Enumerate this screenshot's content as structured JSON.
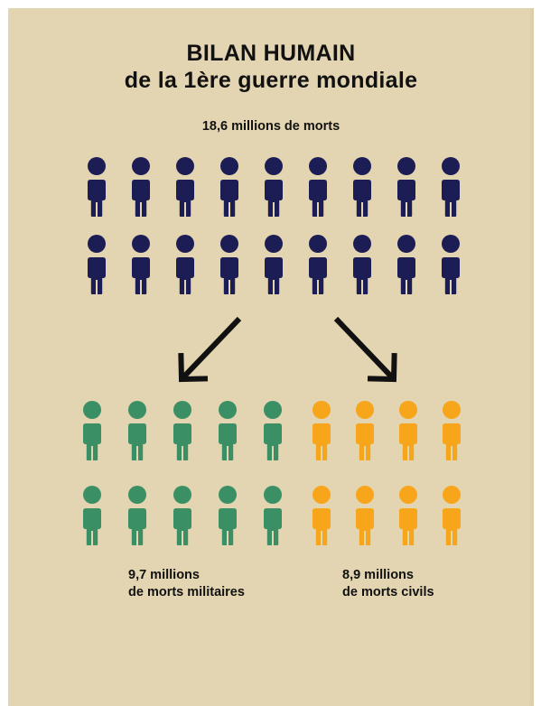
{
  "title": {
    "line1": "BILAN HUMAIN",
    "line2": "de la 1ère guerre mondiale"
  },
  "labels": {
    "total": "18,6 millions de morts",
    "military_line1": "9,7 millions",
    "military_line2": "de morts militaires",
    "civil_line1": "8,9 millions",
    "civil_line2": "de morts civils"
  },
  "colors": {
    "background": "#e3d5b1",
    "total": "#1b1d54",
    "military": "#3a8f64",
    "civil": "#f7a51b",
    "arrows": "#111111"
  },
  "chart_data": {
    "type": "pictogram",
    "units": "millions de morts",
    "total": {
      "value": 18.6,
      "icons": 18,
      "color": "#1b1d54"
    },
    "breakdown": [
      {
        "value": 9.7,
        "icons": 10,
        "color": "#3a8f64"
      },
      {
        "value": 8.9,
        "icons": 8,
        "color": "#f7a51b"
      }
    ]
  }
}
